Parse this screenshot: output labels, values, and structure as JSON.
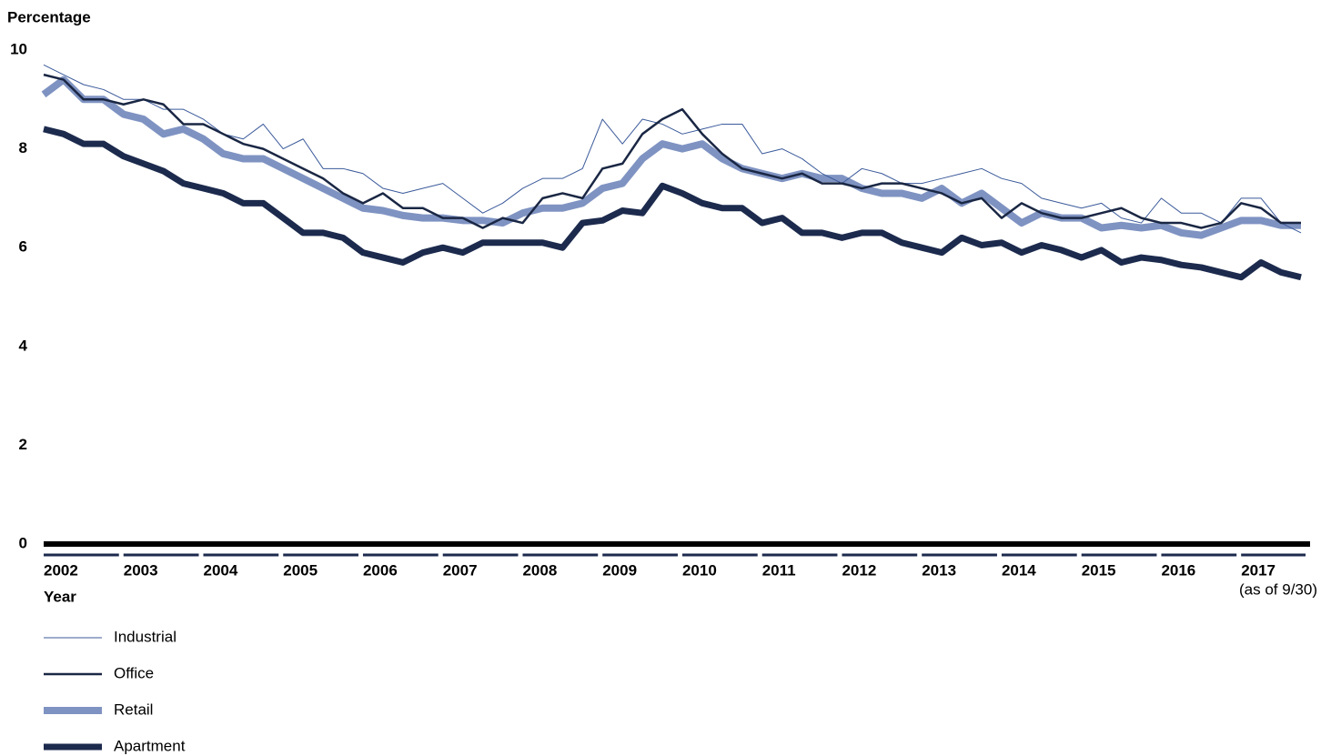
{
  "chart_data": {
    "type": "line",
    "y_label": "Percentage",
    "x_label": "Year",
    "annotation": "(as of 9/30)",
    "x": [
      2002,
      2002.25,
      2002.5,
      2002.75,
      2003,
      2003.25,
      2003.5,
      2003.75,
      2004,
      2004.25,
      2004.5,
      2004.75,
      2005,
      2005.25,
      2005.5,
      2005.75,
      2006,
      2006.25,
      2006.5,
      2006.75,
      2007,
      2007.25,
      2007.5,
      2007.75,
      2008,
      2008.25,
      2008.5,
      2008.75,
      2009,
      2009.25,
      2009.5,
      2009.75,
      2010,
      2010.25,
      2010.5,
      2010.75,
      2011,
      2011.25,
      2011.5,
      2011.75,
      2012,
      2012.25,
      2012.5,
      2012.75,
      2013,
      2013.25,
      2013.5,
      2013.75,
      2014,
      2014.25,
      2014.5,
      2014.75,
      2015,
      2015.25,
      2015.5,
      2015.75,
      2016,
      2016.25,
      2016.5,
      2016.75,
      2017,
      2017.25,
      2017.5,
      2017.75
    ],
    "xlim": [
      2002,
      2017.75
    ],
    "xticks": [
      2002,
      2003,
      2004,
      2005,
      2006,
      2007,
      2008,
      2009,
      2010,
      2011,
      2012,
      2013,
      2014,
      2015,
      2016,
      2017
    ],
    "ylim": [
      0,
      10
    ],
    "yticks": [
      0,
      2,
      4,
      6,
      8,
      10
    ],
    "grid": false,
    "legend": "bottom-left",
    "series": [
      {
        "name": "Industrial",
        "color": "#3b5a9a",
        "width": 1,
        "values": [
          9.7,
          9.5,
          9.3,
          9.2,
          9.0,
          9.0,
          8.8,
          8.8,
          8.6,
          8.3,
          8.2,
          8.5,
          8.0,
          8.2,
          7.6,
          7.6,
          7.5,
          7.2,
          7.1,
          7.2,
          7.3,
          7.0,
          6.7,
          6.9,
          7.2,
          7.4,
          7.4,
          7.6,
          8.6,
          8.1,
          8.6,
          8.5,
          8.3,
          8.4,
          8.5,
          8.5,
          7.9,
          8.0,
          7.8,
          7.5,
          7.3,
          7.6,
          7.5,
          7.3,
          7.3,
          7.4,
          7.5,
          7.6,
          7.4,
          7.3,
          7.0,
          6.9,
          6.8,
          6.9,
          6.6,
          6.5,
          7.0,
          6.7,
          6.7,
          6.5,
          7.0,
          7.0,
          6.5,
          6.3
        ]
      },
      {
        "name": "Office",
        "color": "#1a2744",
        "width": 2.5,
        "values": [
          9.5,
          9.4,
          9.0,
          9.0,
          8.9,
          9.0,
          8.9,
          8.5,
          8.5,
          8.3,
          8.1,
          8.0,
          7.8,
          7.6,
          7.4,
          7.1,
          6.9,
          7.1,
          6.8,
          6.8,
          6.6,
          6.6,
          6.4,
          6.6,
          6.5,
          7.0,
          7.1,
          7.0,
          7.6,
          7.7,
          8.3,
          8.6,
          8.8,
          8.3,
          7.9,
          7.6,
          7.5,
          7.4,
          7.5,
          7.3,
          7.3,
          7.2,
          7.3,
          7.3,
          7.2,
          7.1,
          6.9,
          7.0,
          6.6,
          6.9,
          6.7,
          6.6,
          6.6,
          6.7,
          6.8,
          6.6,
          6.5,
          6.5,
          6.4,
          6.5,
          6.9,
          6.8,
          6.5,
          6.5
        ]
      },
      {
        "name": "Retail",
        "color": "#7f93c2",
        "width": 8,
        "values": [
          9.1,
          9.4,
          9.0,
          9.0,
          8.7,
          8.6,
          8.3,
          8.4,
          8.2,
          7.9,
          7.8,
          7.8,
          7.6,
          7.4,
          7.2,
          7.0,
          6.8,
          6.75,
          6.65,
          6.6,
          6.6,
          6.55,
          6.55,
          6.5,
          6.7,
          6.8,
          6.8,
          6.9,
          7.2,
          7.3,
          7.8,
          8.1,
          8.0,
          8.1,
          7.8,
          7.6,
          7.5,
          7.4,
          7.5,
          7.4,
          7.4,
          7.2,
          7.1,
          7.1,
          7.0,
          7.2,
          6.9,
          7.1,
          6.8,
          6.5,
          6.7,
          6.6,
          6.6,
          6.4,
          6.45,
          6.4,
          6.45,
          6.3,
          6.25,
          6.4,
          6.55,
          6.55,
          6.45,
          6.45
        ]
      },
      {
        "name": "Apartment",
        "color": "#1c2a4d",
        "width": 7,
        "values": [
          8.4,
          8.3,
          8.1,
          8.1,
          7.85,
          7.7,
          7.55,
          7.3,
          7.2,
          7.1,
          6.9,
          6.9,
          6.6,
          6.3,
          6.3,
          6.2,
          5.9,
          5.8,
          5.7,
          5.9,
          6.0,
          5.9,
          6.1,
          6.1,
          6.1,
          6.1,
          6.0,
          6.5,
          6.55,
          6.75,
          6.7,
          7.25,
          7.1,
          6.9,
          6.8,
          6.8,
          6.5,
          6.6,
          6.3,
          6.3,
          6.2,
          6.3,
          6.3,
          6.1,
          6.0,
          5.9,
          6.2,
          6.05,
          6.1,
          5.9,
          6.05,
          5.95,
          5.8,
          5.95,
          5.7,
          5.8,
          5.75,
          5.65,
          5.6,
          5.5,
          5.4,
          5.7,
          5.5,
          5.4
        ]
      }
    ]
  }
}
